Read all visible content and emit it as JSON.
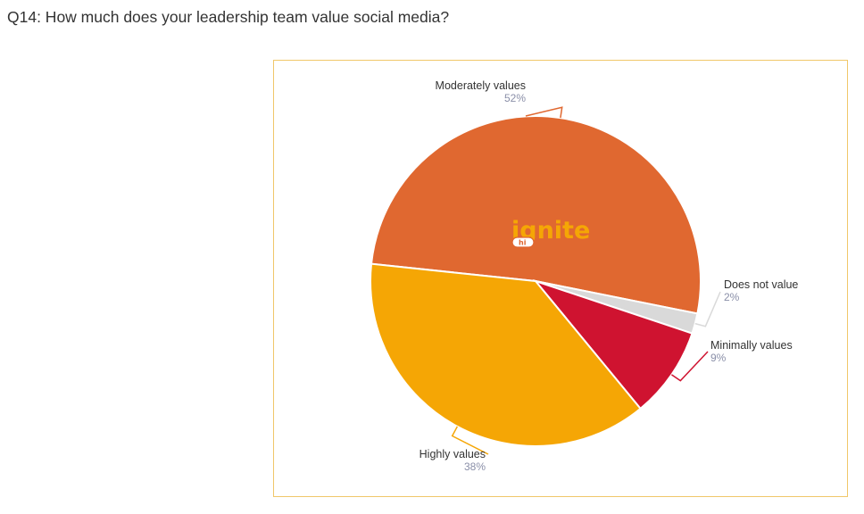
{
  "question": "Q14: How much does your leadership team value social media?",
  "logo": {
    "text": "ignite",
    "badge": "hi"
  },
  "chart_data": {
    "type": "pie",
    "slices": [
      {
        "label": "Moderately values",
        "value": 52,
        "pct_label": "52%",
        "color": "#e06830"
      },
      {
        "label": "Does not value",
        "value": 2,
        "pct_label": "2%",
        "color": "#d9d9d9"
      },
      {
        "label": "Minimally values",
        "value": 9,
        "pct_label": "9%",
        "color": "#cf1330"
      },
      {
        "label": "Highly values",
        "value": 38,
        "pct_label": "38%",
        "color": "#f5a605"
      }
    ],
    "start_angle_deg": 186,
    "direction": "clockwise",
    "legend": "none"
  }
}
